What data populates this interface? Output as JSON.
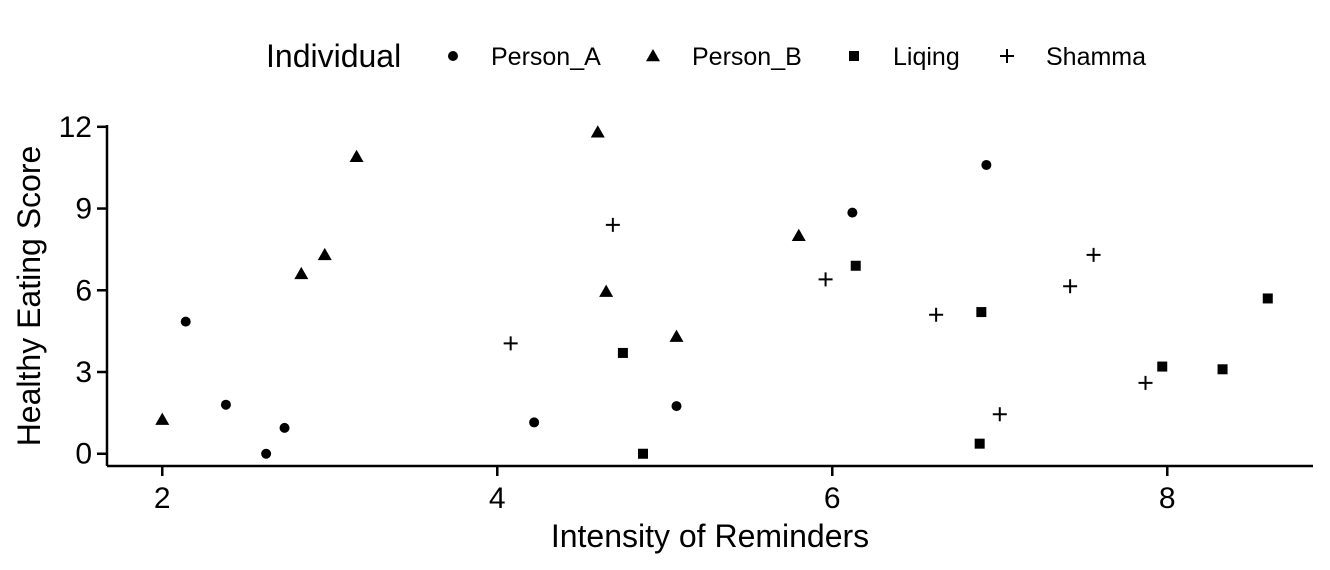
{
  "chart_data": {
    "type": "scatter",
    "title": "",
    "xlabel": "Intensity of Reminders",
    "ylabel": "Healthy Eating Score",
    "xlim": [
      1.67,
      8.87
    ],
    "ylim": [
      -0.45,
      12.25
    ],
    "xticks": [
      2,
      4,
      6,
      8
    ],
    "yticks": [
      0,
      3,
      6,
      9,
      12
    ],
    "grid": false,
    "legend": {
      "title": "Individual",
      "placement": "top"
    },
    "series": [
      {
        "name": "Person_A",
        "shape": "circle",
        "points": [
          [
            2.14,
            4.85
          ],
          [
            2.38,
            1.8
          ],
          [
            2.62,
            0.0
          ],
          [
            2.73,
            0.95
          ],
          [
            4.22,
            1.15
          ],
          [
            5.07,
            1.75
          ],
          [
            6.12,
            8.85
          ],
          [
            6.92,
            10.6
          ]
        ]
      },
      {
        "name": "Person_B",
        "shape": "triangle",
        "points": [
          [
            2.0,
            1.25
          ],
          [
            2.83,
            6.6
          ],
          [
            2.97,
            7.3
          ],
          [
            3.16,
            10.9
          ],
          [
            4.6,
            11.8
          ],
          [
            4.65,
            5.95
          ],
          [
            5.07,
            4.3
          ],
          [
            5.8,
            8.0
          ]
        ]
      },
      {
        "name": "Liqing",
        "shape": "square",
        "points": [
          [
            4.75,
            3.7
          ],
          [
            4.87,
            0.0
          ],
          [
            6.14,
            6.9
          ],
          [
            6.89,
            5.2
          ],
          [
            6.88,
            0.37
          ],
          [
            7.97,
            3.2
          ],
          [
            8.33,
            3.1
          ],
          [
            8.6,
            5.7
          ]
        ]
      },
      {
        "name": "Shamma",
        "shape": "plus",
        "points": [
          [
            4.08,
            4.05
          ],
          [
            4.69,
            8.4
          ],
          [
            5.96,
            6.4
          ],
          [
            6.62,
            5.1
          ],
          [
            7.0,
            1.45
          ],
          [
            7.42,
            6.15
          ],
          [
            7.56,
            7.3
          ],
          [
            7.87,
            2.6
          ]
        ]
      }
    ]
  }
}
